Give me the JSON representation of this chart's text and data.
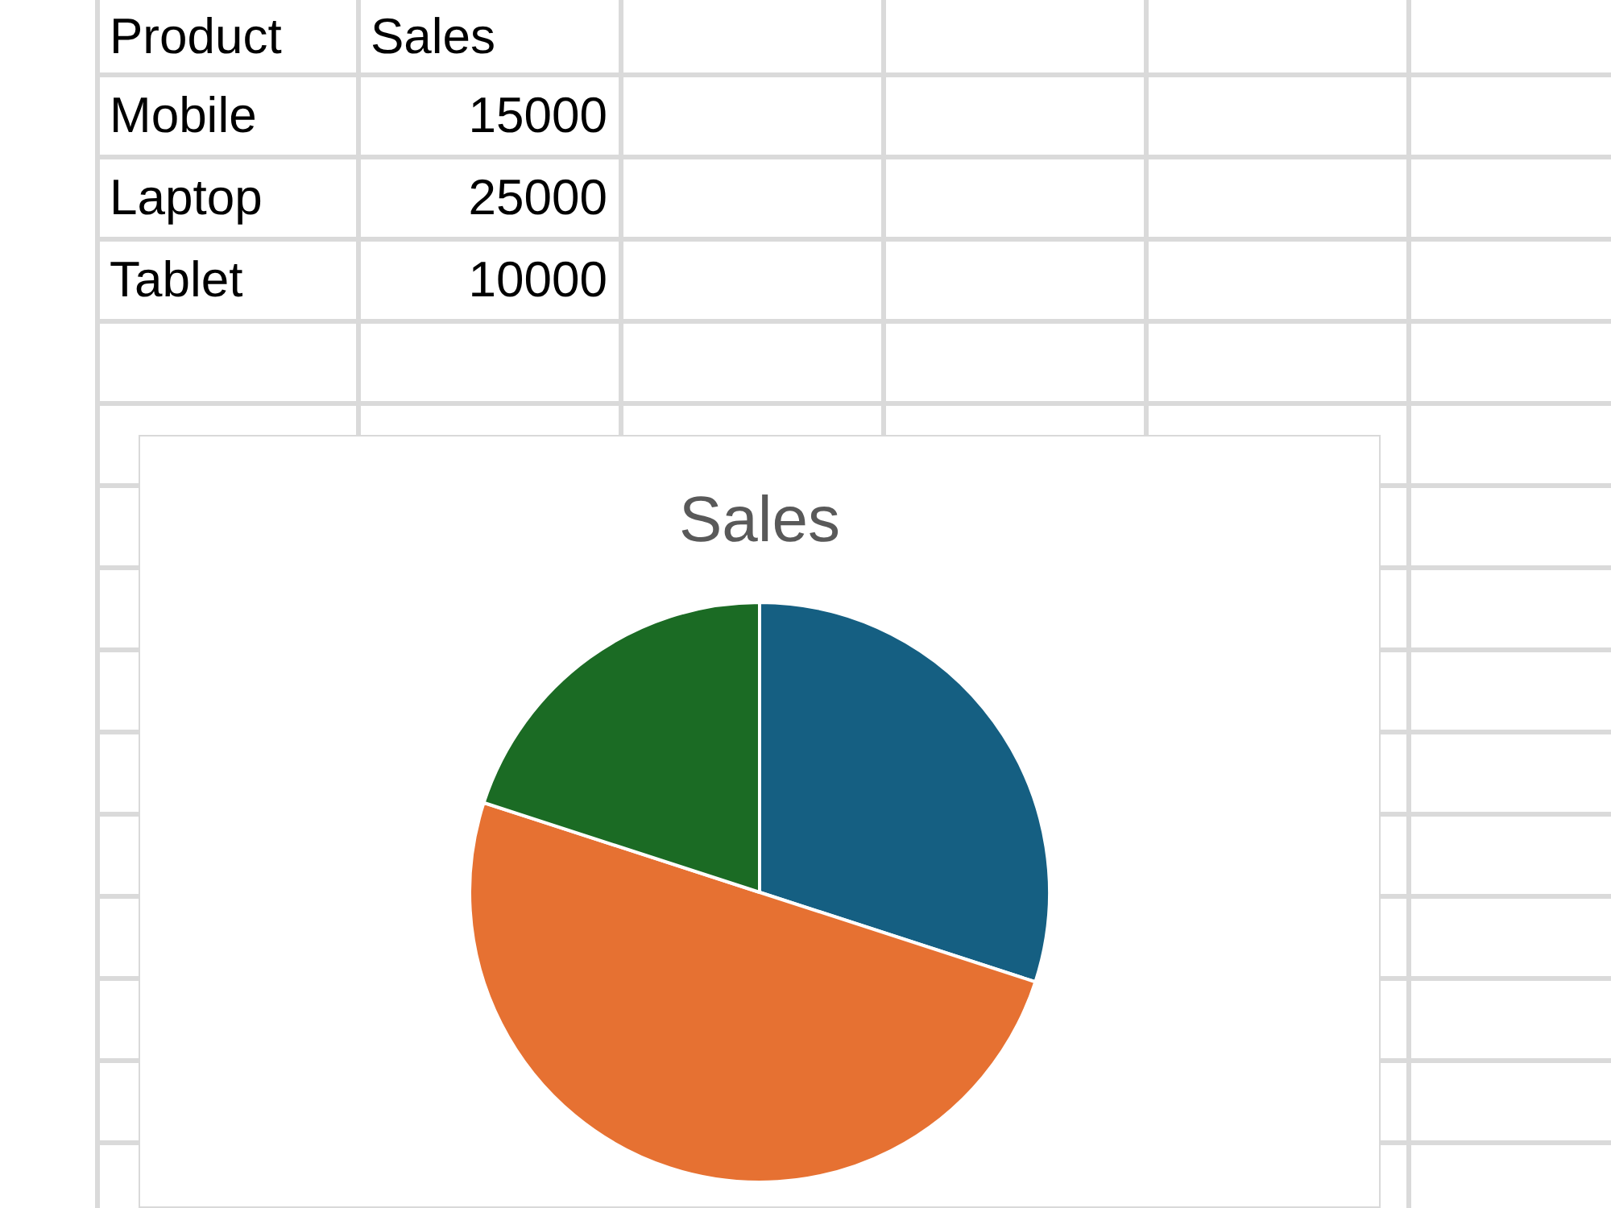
{
  "chart_data": [
    {
      "type": "other",
      "xlabel": "Product",
      "ylabel": "Sales",
      "categories": [
        "Mobile",
        "Laptop",
        "Tablet"
      ],
      "values": [
        15000,
        25000,
        10000
      ],
      "data_labels": true
    },
    {
      "type": "pie",
      "title": "Sales",
      "categories": [
        null,
        null,
        null
      ],
      "values": [
        30,
        50,
        20
      ],
      "colors": [
        "#155f82",
        "#e67132",
        "#1b6b24"
      ]
    }
  ]
}
